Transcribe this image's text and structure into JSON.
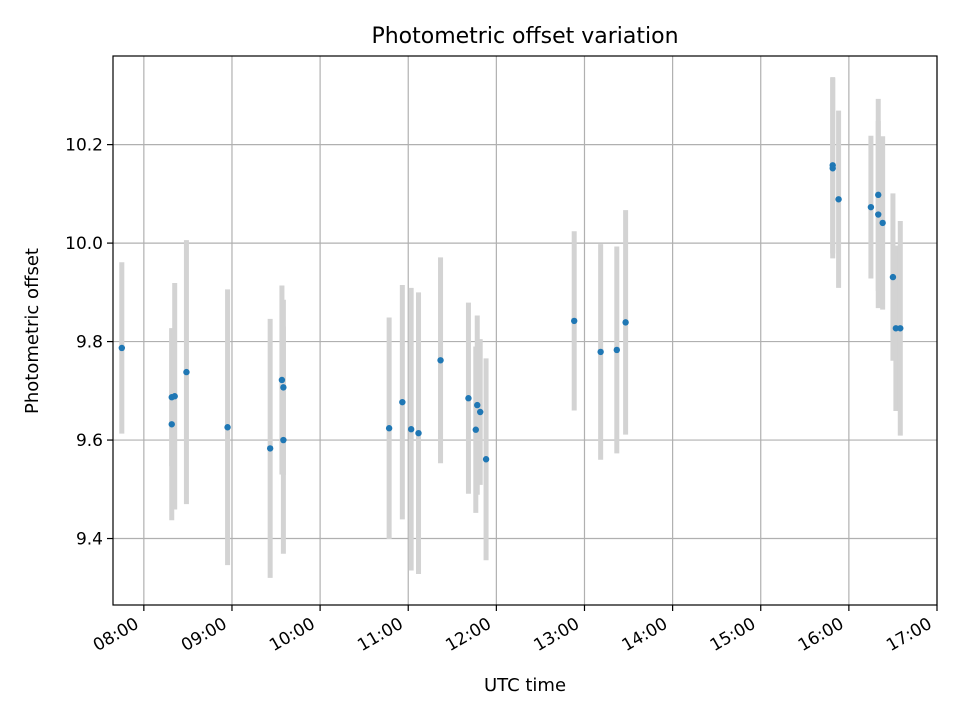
{
  "chart_data": {
    "type": "scatter",
    "title": "Photometric offset variation",
    "xlabel": "UTC time",
    "ylabel": "Photometric offset",
    "x_unit": "time of day (UTC)",
    "xlim": [
      "07:39",
      "17:00"
    ],
    "ylim": [
      9.265,
      10.38
    ],
    "x_ticks": [
      "08:00",
      "09:00",
      "10:00",
      "11:00",
      "12:00",
      "13:00",
      "14:00",
      "15:00",
      "16:00",
      "17:00"
    ],
    "y_ticks": [
      9.4,
      9.6,
      9.8,
      10.0,
      10.2
    ],
    "y_tick_labels": [
      "9.4",
      "9.6",
      "9.8",
      "10.0",
      "10.2"
    ],
    "grid": true,
    "legend": "none",
    "colors": {
      "points": "#1f77b4",
      "errorbars": "#d3d3d3",
      "grid": "#b0b0b0"
    },
    "points": [
      {
        "x": "07:45",
        "y": 9.787,
        "err": 0.174
      },
      {
        "x": "08:19",
        "y": 9.632,
        "err": 0.195
      },
      {
        "x": "08:19",
        "y": 9.687,
        "err": 0.14
      },
      {
        "x": "08:21",
        "y": 9.689,
        "err": 0.23
      },
      {
        "x": "08:29",
        "y": 9.738,
        "err": 0.268
      },
      {
        "x": "08:57",
        "y": 9.626,
        "err": 0.28
      },
      {
        "x": "09:26",
        "y": 9.583,
        "err": 0.263
      },
      {
        "x": "09:34",
        "y": 9.722,
        "err": 0.192
      },
      {
        "x": "09:35",
        "y": 9.707,
        "err": 0.178
      },
      {
        "x": "09:35",
        "y": 9.6,
        "err": 0.231
      },
      {
        "x": "10:47",
        "y": 9.624,
        "err": 0.225
      },
      {
        "x": "10:56",
        "y": 9.677,
        "err": 0.238
      },
      {
        "x": "11:02",
        "y": 9.622,
        "err": 0.287
      },
      {
        "x": "11:07",
        "y": 9.614,
        "err": 0.286
      },
      {
        "x": "11:22",
        "y": 9.762,
        "err": 0.209
      },
      {
        "x": "11:41",
        "y": 9.685,
        "err": 0.194
      },
      {
        "x": "11:46",
        "y": 9.621,
        "err": 0.169
      },
      {
        "x": "11:47",
        "y": 9.671,
        "err": 0.182
      },
      {
        "x": "11:49",
        "y": 9.657,
        "err": 0.148
      },
      {
        "x": "11:53",
        "y": 9.561,
        "err": 0.205
      },
      {
        "x": "12:53",
        "y": 9.842,
        "err": 0.182
      },
      {
        "x": "13:11",
        "y": 9.779,
        "err": 0.219
      },
      {
        "x": "13:22",
        "y": 9.783,
        "err": 0.21
      },
      {
        "x": "13:28",
        "y": 9.839,
        "err": 0.228
      },
      {
        "x": "15:49",
        "y": 10.158,
        "err": 0.179
      },
      {
        "x": "15:49",
        "y": 10.152,
        "err": 0.183
      },
      {
        "x": "15:53",
        "y": 10.089,
        "err": 0.18
      },
      {
        "x": "16:15",
        "y": 10.073,
        "err": 0.145
      },
      {
        "x": "16:20",
        "y": 10.098,
        "err": 0.195
      },
      {
        "x": "16:20",
        "y": 10.058,
        "err": 0.19
      },
      {
        "x": "16:23",
        "y": 10.041,
        "err": 0.176
      },
      {
        "x": "16:30",
        "y": 9.931,
        "err": 0.17
      },
      {
        "x": "16:32",
        "y": 9.827,
        "err": 0.168
      },
      {
        "x": "16:35",
        "y": 9.827,
        "err": 0.218
      }
    ]
  }
}
